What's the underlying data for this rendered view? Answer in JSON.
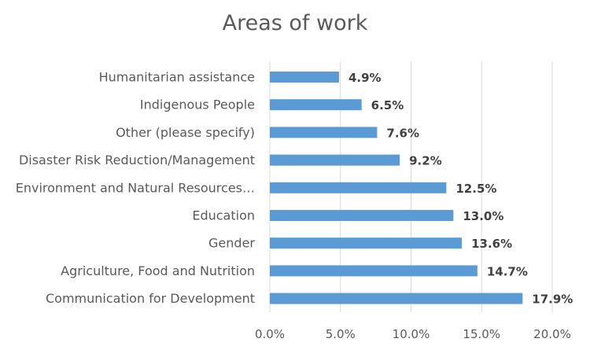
{
  "chart_data": {
    "type": "bar",
    "orientation": "horizontal",
    "title": "Areas of work",
    "categories": [
      "Humanitarian assistance",
      "Indigenous People",
      "Other (please specify)",
      "Disaster Risk Reduction/Management",
      "Environment and Natural Resources…",
      "Education",
      "Gender",
      "Agriculture, Food and Nutrition",
      "Communication for Development"
    ],
    "values": [
      4.9,
      6.5,
      7.6,
      9.2,
      12.5,
      13.0,
      13.6,
      14.7,
      17.9
    ],
    "data_labels": [
      "4.9%",
      "6.5%",
      "7.6%",
      "9.2%",
      "12.5%",
      "13.0%",
      "13.6%",
      "14.7%",
      "17.9%"
    ],
    "x_ticks": [
      "0.0%",
      "5.0%",
      "10.0%",
      "15.0%",
      "20.0%"
    ],
    "xlim": [
      0,
      20
    ],
    "grid": true,
    "legend": "none",
    "bar_color": "#5b9bd5"
  }
}
